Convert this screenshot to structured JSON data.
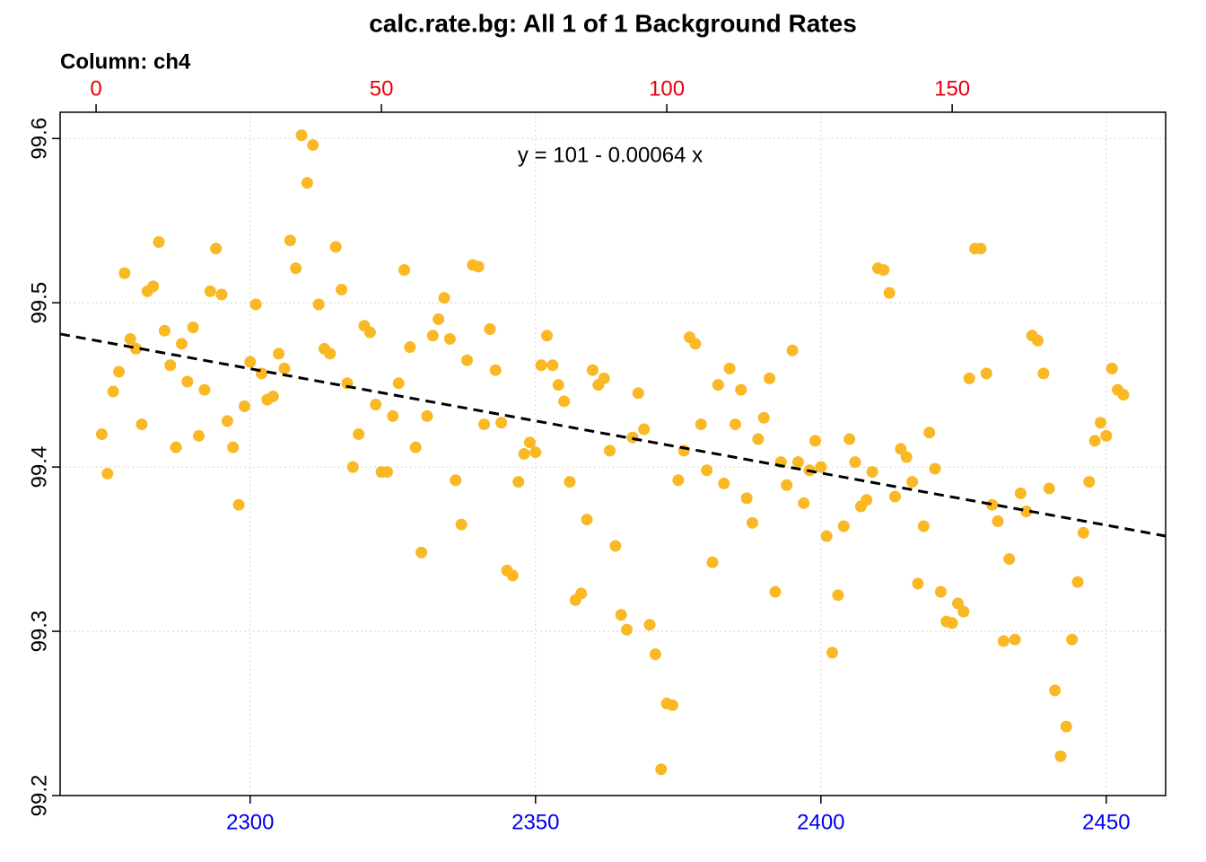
{
  "chart_data": {
    "type": "scatter",
    "title": "calc.rate.bg: All 1 of 1 Background Rates",
    "subtitle": "Column: ch4",
    "annotation": "y = 101 - 0.00064 x",
    "color": "#F9B824",
    "x2_color": "#E8000B",
    "x_color": "#0000EE",
    "grid": true,
    "xlim": [
      2266.7,
      2460.4
    ],
    "xticks": [
      2300,
      2350,
      2400,
      2450
    ],
    "x2lim": [
      -6.3,
      187.4
    ],
    "x2ticks": [
      0,
      50,
      100,
      150
    ],
    "ylim": [
      99.2,
      99.616
    ],
    "yticks": [
      99.2,
      99.3,
      99.4,
      99.5,
      99.6
    ],
    "fit": {
      "x": [
        2266.7,
        2460.4
      ],
      "y": [
        99.481,
        99.358
      ]
    },
    "x": [
      2274,
      2275,
      2276,
      2277,
      2278,
      2279,
      2280,
      2281,
      2282,
      2283,
      2284,
      2285,
      2286,
      2287,
      2288,
      2289,
      2290,
      2291,
      2292,
      2293,
      2294,
      2295,
      2296,
      2297,
      2298,
      2299,
      2300,
      2301,
      2302,
      2303,
      2304,
      2305,
      2306,
      2307,
      2308,
      2309,
      2310,
      2311,
      2312,
      2313,
      2314,
      2315,
      2316,
      2317,
      2318,
      2319,
      2320,
      2321,
      2322,
      2323,
      2324,
      2325,
      2326,
      2327,
      2328,
      2329,
      2330,
      2331,
      2332,
      2333,
      2334,
      2335,
      2336,
      2337,
      2338,
      2339,
      2340,
      2341,
      2342,
      2343,
      2344,
      2345,
      2346,
      2347,
      2348,
      2349,
      2350,
      2351,
      2352,
      2353,
      2354,
      2355,
      2356,
      2357,
      2358,
      2359,
      2360,
      2361,
      2362,
      2363,
      2364,
      2365,
      2366,
      2367,
      2368,
      2369,
      2370,
      2371,
      2372,
      2373,
      2374,
      2375,
      2376,
      2377,
      2378,
      2379,
      2380,
      2381,
      2382,
      2383,
      2384,
      2385,
      2386,
      2387,
      2388,
      2389,
      2390,
      2391,
      2392,
      2393,
      2394,
      2395,
      2396,
      2397,
      2398,
      2399,
      2400,
      2401,
      2402,
      2403,
      2404,
      2405,
      2406,
      2407,
      2408,
      2409,
      2410,
      2411,
      2412,
      2413,
      2414,
      2415,
      2416,
      2417,
      2418,
      2419,
      2420,
      2421,
      2422,
      2423,
      2424,
      2425,
      2426,
      2427,
      2428,
      2429,
      2430,
      2431,
      2432,
      2433,
      2434,
      2435,
      2436,
      2437,
      2438,
      2439,
      2440,
      2441,
      2442,
      2443,
      2444,
      2445,
      2446,
      2447,
      2448,
      2449,
      2450,
      2451,
      2452,
      2453
    ],
    "values": [
      99.42,
      99.396,
      99.446,
      99.458,
      99.518,
      99.478,
      99.472,
      99.426,
      99.507,
      99.51,
      99.537,
      99.483,
      99.462,
      99.412,
      99.475,
      99.452,
      99.485,
      99.419,
      99.447,
      99.507,
      99.533,
      99.505,
      99.428,
      99.412,
      99.377,
      99.437,
      99.464,
      99.499,
      99.457,
      99.441,
      99.443,
      99.469,
      99.46,
      99.538,
      99.521,
      99.602,
      99.573,
      99.596,
      99.499,
      99.472,
      99.469,
      99.534,
      99.508,
      99.451,
      99.4,
      99.42,
      99.486,
      99.482,
      99.438,
      99.397,
      99.397,
      99.431,
      99.451,
      99.52,
      99.473,
      99.412,
      99.348,
      99.431,
      99.48,
      99.49,
      99.503,
      99.478,
      99.392,
      99.365,
      99.465,
      99.523,
      99.522,
      99.426,
      99.484,
      99.459,
      99.427,
      99.337,
      99.334,
      99.391,
      99.408,
      99.415,
      99.409,
      99.462,
      99.48,
      99.462,
      99.45,
      99.44,
      99.391,
      99.319,
      99.323,
      99.368,
      99.459,
      99.45,
      99.454,
      99.41,
      99.352,
      99.31,
      99.301,
      99.418,
      99.445,
      99.423,
      99.304,
      99.286,
      99.216,
      99.256,
      99.255,
      99.392,
      99.41,
      99.479,
      99.475,
      99.426,
      99.398,
      99.342,
      99.45,
      99.39,
      99.46,
      99.426,
      99.447,
      99.381,
      99.366,
      99.417,
      99.43,
      99.454,
      99.324,
      99.403,
      99.389,
      99.471,
      99.403,
      99.378,
      99.398,
      99.416,
      99.4,
      99.358,
      99.287,
      99.322,
      99.364,
      99.417,
      99.403,
      99.376,
      99.38,
      99.397,
      99.521,
      99.52,
      99.506,
      99.382,
      99.411,
      99.406,
      99.391,
      99.329,
      99.364,
      99.421,
      99.399,
      99.324,
      99.306,
      99.305,
      99.317,
      99.312,
      99.454,
      99.533,
      99.533,
      99.457,
      99.377,
      99.367,
      99.294,
      99.344,
      99.295,
      99.384,
      99.373,
      99.48,
      99.477,
      99.457,
      99.387,
      99.264,
      99.224,
      99.242,
      99.295,
      99.33,
      99.36,
      99.391,
      99.416,
      99.427,
      99.419,
      99.46,
      99.447,
      99.444
    ]
  }
}
